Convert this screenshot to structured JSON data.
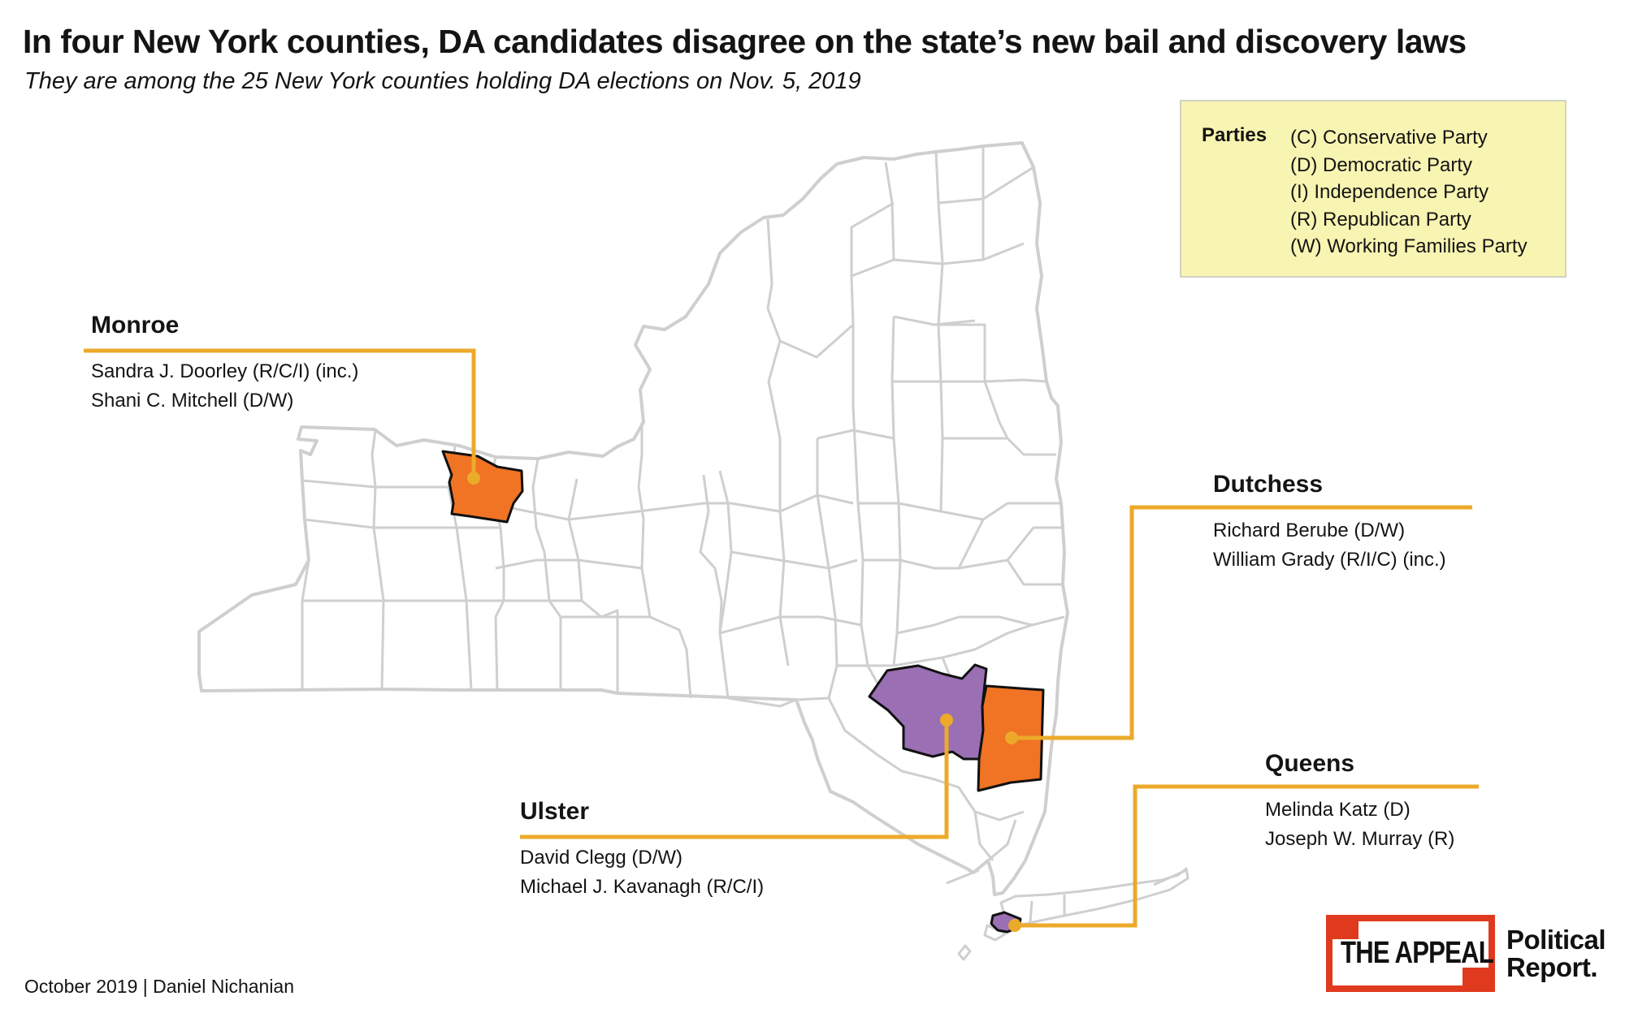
{
  "title": "In four New York counties, DA candidates disagree on the state’s new bail and discovery laws",
  "subtitle": "They are among the 25 New York counties holding DA elections on Nov. 5, 2019",
  "legend": {
    "title": "Parties",
    "items": [
      "(C) Conservative Party",
      "(D) Democratic Party",
      "(I) Independence Party",
      "(R) Republican Party",
      "(W) Working Families Party"
    ]
  },
  "counties": {
    "monroe": {
      "name": "Monroe",
      "candidates": [
        "Sandra J. Doorley (R/C/I) (inc.)",
        "Shani C. Mitchell (D/W)"
      ],
      "fill": "orange"
    },
    "dutchess": {
      "name": "Dutchess",
      "candidates": [
        "Richard Berube (D/W)",
        "William Grady (R/I/C) (inc.)"
      ],
      "fill": "orange"
    },
    "ulster": {
      "name": "Ulster",
      "candidates": [
        "David Clegg (D/W)",
        "Michael J. Kavanagh (R/C/I)"
      ],
      "fill": "purple"
    },
    "queens": {
      "name": "Queens",
      "candidates": [
        "Melinda Katz (D)",
        "Joseph W. Murray (R)"
      ],
      "fill": "purple"
    }
  },
  "colors": {
    "orange": "#f07424",
    "purple": "#9a6fb4",
    "leader": "#ecaa2a",
    "county_border": "#cfcfcf",
    "legend_bg": "#f8f4b2",
    "logo_red": "#e03a1e"
  },
  "footer": "October 2019 | Daniel Nichanian",
  "logo": {
    "brand": "THE APPEAL",
    "line1": "Political",
    "line2": "Report."
  }
}
